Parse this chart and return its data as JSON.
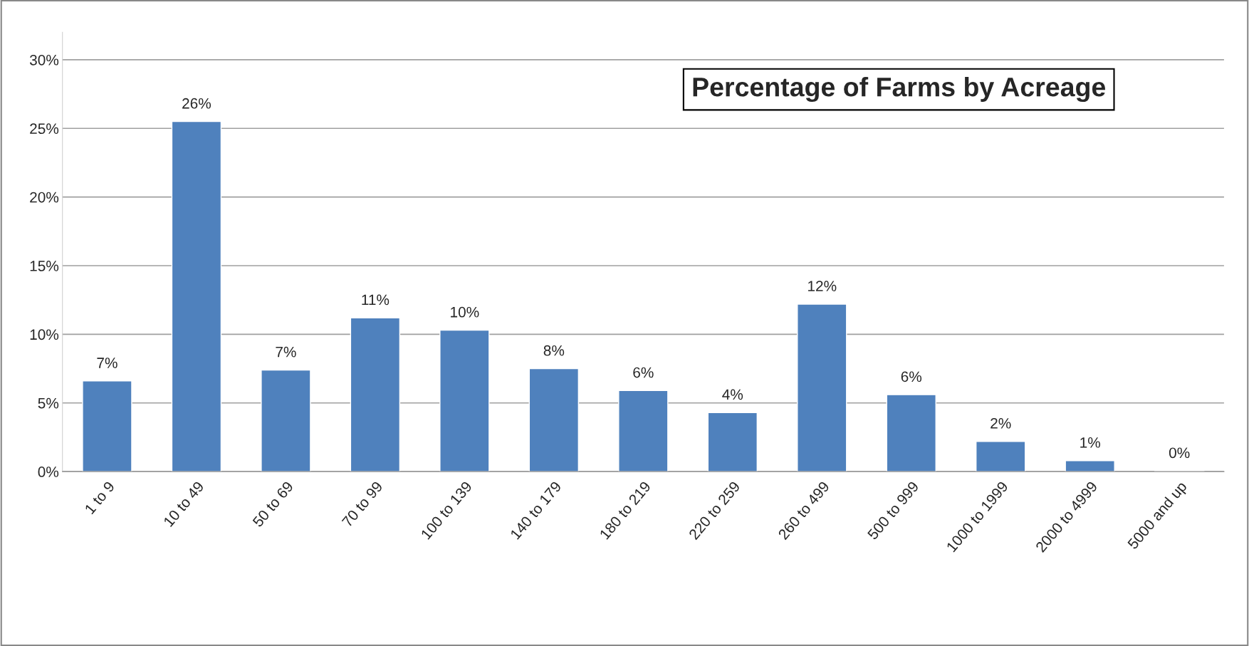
{
  "chart_data": {
    "type": "bar",
    "title": "Percentage of Farms by Acreage",
    "categories": [
      "1 to 9",
      "10 to 49",
      "50 to 69",
      "70 to 99",
      "100 to 139",
      "140 to 179",
      "180 to 219",
      "220 to 259",
      "260 to 499",
      "500 to 999",
      "1000 to 1999",
      "2000 to 4999",
      "5000 and up"
    ],
    "values": [
      6.6,
      25.5,
      7.4,
      11.2,
      10.3,
      7.5,
      5.9,
      4.3,
      12.2,
      5.6,
      2.2,
      0.8,
      0.05
    ],
    "value_labels": [
      "7%",
      "26%",
      "7%",
      "11%",
      "10%",
      "8%",
      "6%",
      "4%",
      "12%",
      "6%",
      "2%",
      "1%",
      "0%"
    ],
    "color": "#4f81bd",
    "ylim": [
      0,
      32
    ],
    "yticks": [
      {
        "value": 0,
        "label": "0%"
      },
      {
        "value": 5,
        "label": "5%"
      },
      {
        "value": 10,
        "label": "10%"
      },
      {
        "value": 15,
        "label": "15%"
      },
      {
        "value": 20,
        "label": "20%"
      },
      {
        "value": 25,
        "label": "25%"
      },
      {
        "value": 30,
        "label": "30%"
      }
    ],
    "grid": "y",
    "legend": false
  }
}
